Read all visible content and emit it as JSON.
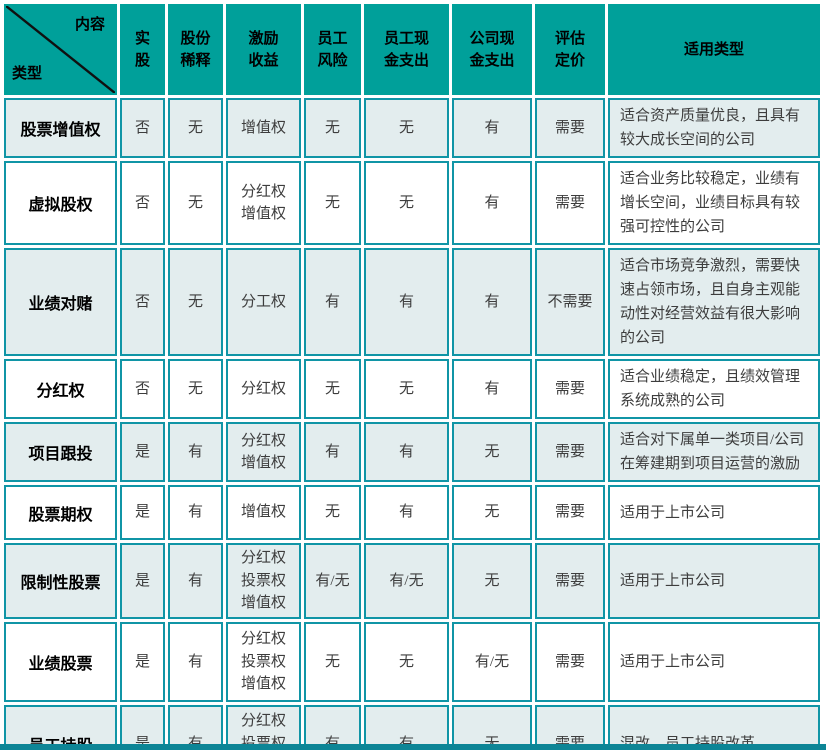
{
  "colors": {
    "header_teal": "#00A09A",
    "border_teal": "#1095A6",
    "row_shade": "#E3EDEE",
    "bottom_bar": "#0D8596"
  },
  "table": {
    "corner": {
      "top_label": "内容",
      "bottom_label": "类型"
    },
    "column_headers": [
      "实\n股",
      "股份\n稀释",
      "激励\n收益",
      "员工\n风险",
      "员工现\n金支出",
      "公司现\n金支出",
      "评估\n定价",
      "适用类型"
    ],
    "rows": [
      {
        "label": "股票增值权",
        "values": [
          "否",
          "无",
          "增值权",
          "无",
          "无",
          "有",
          "需要"
        ],
        "suitable": "适合资产质量优良，且具有较大成长空间的公司"
      },
      {
        "label": "虚拟股权",
        "values": [
          "否",
          "无",
          "分红权\n增值权",
          "无",
          "无",
          "有",
          "需要"
        ],
        "suitable": "适合业务比较稳定，业绩有增长空间，业绩目标具有较强可控性的公司"
      },
      {
        "label": "业绩对赌",
        "values": [
          "否",
          "无",
          "分工权",
          "有",
          "有",
          "有",
          "不需要"
        ],
        "suitable": "适合市场竞争激烈，需要快速占领市场，且自身主观能动性对经营效益有很大影响的公司"
      },
      {
        "label": "分红权",
        "values": [
          "否",
          "无",
          "分红权",
          "无",
          "无",
          "有",
          "需要"
        ],
        "suitable": "适合业绩稳定，且绩效管理系统成熟的公司"
      },
      {
        "label": "项目跟投",
        "values": [
          "是",
          "有",
          "分红权\n增值权",
          "有",
          "有",
          "无",
          "需要"
        ],
        "suitable": "适合对下属单一类项目/公司在筹建期到项目运营的激励"
      },
      {
        "label": "股票期权",
        "values": [
          "是",
          "有",
          "增值权",
          "无",
          "有",
          "无",
          "需要"
        ],
        "suitable": "适用于上市公司"
      },
      {
        "label": "限制性股票",
        "values": [
          "是",
          "有",
          "分红权\n投票权\n增值权",
          "有/无",
          "有/无",
          "无",
          "需要"
        ],
        "suitable": "适用于上市公司"
      },
      {
        "label": "业绩股票",
        "values": [
          "是",
          "有",
          "分红权\n投票权\n增值权",
          "无",
          "无",
          "有/无",
          "需要"
        ],
        "suitable": "适用于上市公司"
      },
      {
        "label": "员工持股",
        "values": [
          "是",
          "有",
          "分红权\n投票权\n增值权",
          "有",
          "有",
          "无",
          "需要"
        ],
        "suitable": "混改，员工持股改革"
      }
    ]
  }
}
